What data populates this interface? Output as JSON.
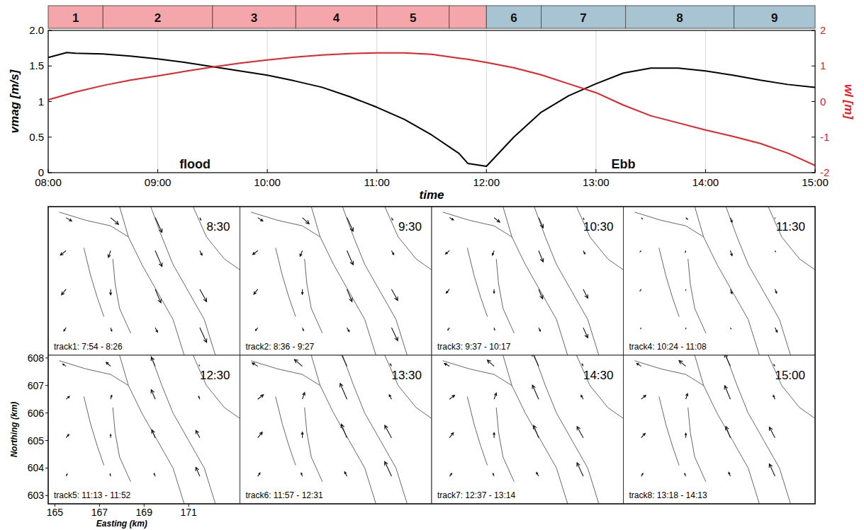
{
  "chart_data": [
    {
      "type": "line",
      "x_label": "time",
      "y_label": "vmag [m/s]",
      "y2_label": "wl [m]",
      "xlim": [
        8,
        15
      ],
      "xticks": [
        {
          "value": 8,
          "label": "08:00"
        },
        {
          "value": 9,
          "label": "09:00"
        },
        {
          "value": 10,
          "label": "10:00"
        },
        {
          "value": 11,
          "label": "11:00"
        },
        {
          "value": 12,
          "label": "12:00"
        },
        {
          "value": 13,
          "label": "13:00"
        },
        {
          "value": 14,
          "label": "14:00"
        },
        {
          "value": 15,
          "label": "15:00"
        }
      ],
      "ylim": [
        0,
        2
      ],
      "yticks": [
        0,
        0.5,
        1,
        1.5,
        {
          "value": 2,
          "label": "2.0"
        }
      ],
      "y2lim": [
        -2,
        2
      ],
      "y2ticks": [
        -2,
        -1,
        0,
        1,
        2
      ],
      "grid": "x",
      "x": [
        8.0,
        8.17,
        8.25,
        8.5,
        8.75,
        9.0,
        9.25,
        9.5,
        9.75,
        10.0,
        10.25,
        10.5,
        10.75,
        11.0,
        11.25,
        11.5,
        11.75,
        11.83,
        12.0,
        12.25,
        12.5,
        12.75,
        13.0,
        13.25,
        13.5,
        13.75,
        14.0,
        14.25,
        14.5,
        14.75,
        15.0
      ],
      "series": [
        {
          "color": "#000000",
          "values": [
            1.62,
            1.69,
            1.68,
            1.67,
            1.64,
            1.6,
            1.55,
            1.49,
            1.43,
            1.37,
            1.29,
            1.2,
            1.07,
            0.92,
            0.75,
            0.53,
            0.27,
            0.13,
            0.09,
            0.5,
            0.85,
            1.08,
            1.25,
            1.4,
            1.47,
            1.47,
            1.43,
            1.37,
            1.3,
            1.24,
            1.2
          ]
        },
        {
          "color": "#e8202a",
          "axis": "y2",
          "values": [
            0.05,
            0.2,
            0.27,
            0.45,
            0.6,
            0.72,
            0.85,
            0.97,
            1.08,
            1.17,
            1.25,
            1.31,
            1.35,
            1.37,
            1.37,
            1.33,
            1.22,
            1.19,
            1.1,
            0.95,
            0.75,
            0.5,
            0.25,
            -0.1,
            -0.4,
            -0.6,
            -0.8,
            -0.98,
            -1.18,
            -1.45,
            -1.8
          ]
        }
      ],
      "phases": [
        {
          "label": "1",
          "start": 8.0,
          "end": 8.5,
          "color": "#f4a6ab"
        },
        {
          "label": "2",
          "start": 8.5,
          "end": 9.5,
          "color": "#f4a6ab"
        },
        {
          "label": "3",
          "start": 9.5,
          "end": 10.26,
          "color": "#f4a6ab"
        },
        {
          "label": "4",
          "start": 10.26,
          "end": 11.0,
          "color": "#f4a6ab"
        },
        {
          "label": "5",
          "start": 11.0,
          "end": 11.66,
          "color": "#f4a6ab"
        },
        {
          "label": null,
          "start": 11.66,
          "end": 12.0,
          "color": "#f4a6ab"
        },
        {
          "label": "6",
          "start": 12.0,
          "end": 12.5,
          "color": "#a8c4d2"
        },
        {
          "label": "7",
          "start": 12.5,
          "end": 13.27,
          "color": "#a8c4d2"
        },
        {
          "label": "8",
          "start": 13.27,
          "end": 14.26,
          "color": "#a8c4d2"
        },
        {
          "label": "9",
          "start": 14.26,
          "end": 15.0,
          "color": "#a8c4d2"
        }
      ],
      "annotations": [
        {
          "text": "flood",
          "x": 9.34,
          "y": 0.12
        },
        {
          "text": "Ebb",
          "x": 13.25,
          "y": 0.12
        }
      ]
    },
    {
      "type": "quiver",
      "x_label": "Easting (km)",
      "y_label": "Northing (km)",
      "xlim": [
        164.7,
        173.3
      ],
      "ylim": [
        602.7,
        608.1
      ],
      "xticks": [
        165,
        167,
        169,
        171
      ],
      "yticks": [
        603,
        604,
        605,
        606,
        607,
        608
      ],
      "grid_x": [
        165.5,
        167.5,
        169.5,
        171.5
      ],
      "grid_y": [
        607.7,
        606.5,
        605.1,
        603.7
      ],
      "panels": [
        {
          "time": "8:30",
          "track": "track1: 7:54 - 8:26",
          "u": [
            0.5,
            0.7,
            0.6,
            0.1,
            -0.5,
            -0.2,
            0.6,
            0.2,
            -0.4,
            0.0,
            0.5,
            0.6,
            -0.2,
            0.1,
            0.2,
            0.6
          ],
          "v": [
            -0.3,
            -0.6,
            -1.3,
            -0.2,
            -0.4,
            -0.6,
            -1.4,
            -0.4,
            -0.5,
            -0.5,
            -1.2,
            -1.1,
            -0.3,
            -0.3,
            -0.4,
            -1.3
          ]
        },
        {
          "time": "9:30",
          "track": "track2: 8:36 - 9:27",
          "u": [
            0.45,
            0.6,
            0.55,
            0.1,
            -0.45,
            -0.2,
            0.55,
            0.2,
            -0.35,
            0.0,
            0.45,
            0.55,
            -0.2,
            0.1,
            0.2,
            0.55
          ],
          "v": [
            -0.3,
            -0.55,
            -1.2,
            -0.2,
            -0.35,
            -0.5,
            -1.25,
            -0.35,
            -0.45,
            -0.45,
            -1.1,
            -1.0,
            -0.25,
            -0.25,
            -0.35,
            -1.15
          ]
        },
        {
          "time": "10:30",
          "track": "track3: 9:37 - 10:17",
          "u": [
            0.35,
            0.5,
            0.4,
            0.05,
            -0.35,
            -0.15,
            0.4,
            0.15,
            -0.3,
            0.0,
            0.35,
            0.4,
            -0.15,
            0.05,
            0.15,
            0.4
          ],
          "v": [
            -0.2,
            -0.4,
            -0.9,
            -0.15,
            -0.3,
            -0.4,
            -1.0,
            -0.3,
            -0.35,
            -0.35,
            -0.85,
            -0.8,
            -0.2,
            -0.2,
            -0.3,
            -0.9
          ]
        },
        {
          "time": "11:30",
          "track": "track4: 10:24 - 11:08",
          "u": [
            0.1,
            0.15,
            0.15,
            0.0,
            -0.1,
            -0.05,
            0.15,
            0.05,
            -0.1,
            0.0,
            0.15,
            0.15,
            -0.05,
            0.0,
            0.05,
            0.2
          ],
          "v": [
            -0.1,
            -0.15,
            -0.4,
            -0.05,
            -0.1,
            -0.15,
            -0.45,
            -0.1,
            -0.15,
            -0.1,
            -0.4,
            -0.35,
            -0.1,
            -0.1,
            -0.1,
            -0.4
          ]
        },
        {
          "time": "12:30",
          "track": "track5: 11:13 - 11:52",
          "u": [
            -0.3,
            -0.4,
            -0.35,
            -0.05,
            0.3,
            0.1,
            -0.35,
            -0.1,
            0.25,
            0.0,
            -0.3,
            -0.35,
            0.1,
            -0.05,
            -0.1,
            -0.35
          ],
          "v": [
            0.2,
            0.35,
            0.8,
            0.1,
            0.25,
            0.35,
            0.85,
            0.25,
            0.3,
            0.3,
            0.7,
            0.65,
            0.2,
            0.2,
            0.25,
            0.8
          ]
        },
        {
          "time": "13:30",
          "track": "track6: 11:57 - 12:31",
          "u": [
            -0.5,
            -0.7,
            -0.6,
            -0.1,
            0.5,
            0.2,
            -0.6,
            -0.2,
            0.4,
            0.0,
            -0.5,
            -0.6,
            0.2,
            -0.1,
            -0.2,
            -0.6
          ],
          "v": [
            0.3,
            0.6,
            1.3,
            0.2,
            0.4,
            0.6,
            1.4,
            0.4,
            0.5,
            0.5,
            1.2,
            1.1,
            0.3,
            0.3,
            0.4,
            1.3
          ]
        },
        {
          "time": "14:30",
          "track": "track7: 12:37 - 13:14",
          "u": [
            -0.45,
            -0.6,
            -0.55,
            -0.1,
            0.45,
            0.2,
            -0.55,
            -0.2,
            0.35,
            0.0,
            -0.45,
            -0.55,
            0.2,
            -0.1,
            -0.2,
            -0.55
          ],
          "v": [
            0.25,
            0.55,
            1.2,
            0.2,
            0.35,
            0.55,
            1.25,
            0.35,
            0.45,
            0.45,
            1.1,
            1.0,
            0.25,
            0.25,
            0.35,
            1.2
          ]
        },
        {
          "time": "15:00",
          "track": "track8: 13:18 - 14:13",
          "u": [
            -0.4,
            -0.6,
            -0.5,
            -0.1,
            0.4,
            0.15,
            -0.5,
            -0.15,
            0.35,
            0.0,
            -0.4,
            -0.5,
            0.15,
            -0.1,
            -0.15,
            -0.5
          ],
          "v": [
            0.25,
            0.5,
            1.1,
            0.15,
            0.35,
            0.5,
            1.2,
            0.35,
            0.4,
            0.4,
            1.0,
            0.95,
            0.25,
            0.25,
            0.35,
            1.1
          ]
        }
      ]
    }
  ]
}
